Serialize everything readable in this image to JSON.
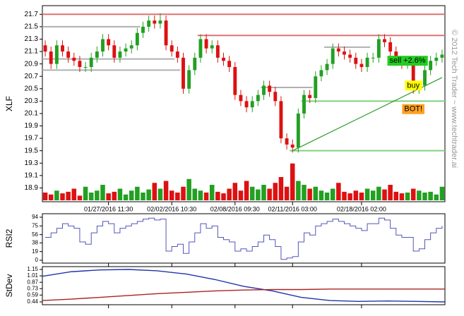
{
  "chart_data": [
    {
      "type": "candlestick",
      "y_label": "XLF",
      "watermark": "© 2012 Tech Trader ~ www.techtrader.ai",
      "categories": [
        null,
        null,
        null,
        null,
        null,
        null,
        null,
        null,
        null,
        null,
        null,
        "01/27/2016 11:30",
        null,
        null,
        null,
        null,
        null,
        null,
        null,
        null,
        null,
        null,
        "02/02/2016 10:30",
        null,
        null,
        null,
        null,
        null,
        null,
        null,
        null,
        null,
        null,
        "02/08/2016 09:30",
        null,
        null,
        null,
        null,
        null,
        null,
        null,
        null,
        null,
        "02/11/2016 03:00",
        null,
        null,
        null,
        null,
        null,
        null,
        null,
        null,
        null,
        null,
        null,
        "02/18/2016 02:00",
        null,
        null,
        null,
        null,
        null,
        null,
        null,
        null,
        null,
        null,
        null,
        null,
        null,
        null
      ],
      "open": [
        21.2,
        21.1,
        20.9,
        21.2,
        21.1,
        21.0,
        20.95,
        20.85,
        20.85,
        21.0,
        21.1,
        21.3,
        21.2,
        21.0,
        21.1,
        21.15,
        21.2,
        21.4,
        21.5,
        21.6,
        21.55,
        21.6,
        21.2,
        21.1,
        21.0,
        20.5,
        20.8,
        21.0,
        21.3,
        21.15,
        21.2,
        21.0,
        20.95,
        20.85,
        20.4,
        20.3,
        20.2,
        20.3,
        20.4,
        20.55,
        20.45,
        20.3,
        19.7,
        19.6,
        19.55,
        20.1,
        20.4,
        20.35,
        20.7,
        20.8,
        20.9,
        21.15,
        21.1,
        21.05,
        21.0,
        20.9,
        20.85,
        21.0,
        21.0,
        21.3,
        21.25,
        21.1,
        20.95,
        20.9,
        20.9,
        20.5,
        20.55,
        20.8,
        20.95,
        21.0
      ],
      "high": [
        21.28,
        21.18,
        21.28,
        21.28,
        21.18,
        21.08,
        21.03,
        20.93,
        21.08,
        21.18,
        21.38,
        21.38,
        21.28,
        21.18,
        21.23,
        21.28,
        21.48,
        21.58,
        21.68,
        21.68,
        21.72,
        21.68,
        21.28,
        21.18,
        21.08,
        20.88,
        21.08,
        21.38,
        21.38,
        21.28,
        21.28,
        21.08,
        21.03,
        20.93,
        20.48,
        20.38,
        20.38,
        20.48,
        20.63,
        20.63,
        20.53,
        20.38,
        19.78,
        19.68,
        20.18,
        20.48,
        20.48,
        20.78,
        20.88,
        20.98,
        21.23,
        21.23,
        21.18,
        21.13,
        21.08,
        20.98,
        21.08,
        21.08,
        21.38,
        21.38,
        21.33,
        21.18,
        21.03,
        20.98,
        20.98,
        20.63,
        20.88,
        21.03,
        21.08,
        21.13
      ],
      "low": [
        21.02,
        20.82,
        20.82,
        21.02,
        20.92,
        20.87,
        20.77,
        20.77,
        20.77,
        20.92,
        21.02,
        21.12,
        20.92,
        20.92,
        21.02,
        21.07,
        21.12,
        21.32,
        21.42,
        21.47,
        21.47,
        21.12,
        21.02,
        20.92,
        20.42,
        20.42,
        20.72,
        20.92,
        21.07,
        21.07,
        20.92,
        20.87,
        20.77,
        20.32,
        20.22,
        20.12,
        20.12,
        20.22,
        20.32,
        20.37,
        20.22,
        19.62,
        19.52,
        19.47,
        19.47,
        20.02,
        20.27,
        20.27,
        20.62,
        20.72,
        20.82,
        21.02,
        20.97,
        20.92,
        20.82,
        20.77,
        20.77,
        20.92,
        20.92,
        21.17,
        21.02,
        20.87,
        20.82,
        20.82,
        20.42,
        20.42,
        20.47,
        20.72,
        20.87,
        20.92
      ],
      "close": [
        21.1,
        20.9,
        21.2,
        21.1,
        21.0,
        20.95,
        20.85,
        20.85,
        21.0,
        21.1,
        21.3,
        21.2,
        21.0,
        21.1,
        21.15,
        21.2,
        21.4,
        21.5,
        21.6,
        21.55,
        21.6,
        21.2,
        21.1,
        21.0,
        20.5,
        20.8,
        21.0,
        21.3,
        21.15,
        21.2,
        21.0,
        20.95,
        20.85,
        20.4,
        20.3,
        20.2,
        20.3,
        20.4,
        20.55,
        20.45,
        20.3,
        19.7,
        19.6,
        19.55,
        20.1,
        20.4,
        20.35,
        20.7,
        20.8,
        20.9,
        21.15,
        21.1,
        21.05,
        21.0,
        20.9,
        20.85,
        21.0,
        21.0,
        21.3,
        21.25,
        21.1,
        20.95,
        20.9,
        20.9,
        20.5,
        20.55,
        20.8,
        20.95,
        21.0,
        21.05
      ],
      "volume": [
        20,
        15,
        25,
        18,
        22,
        30,
        12,
        35,
        20,
        25,
        40,
        18,
        22,
        30,
        15,
        25,
        35,
        20,
        28,
        45,
        30,
        50,
        25,
        20,
        35,
        55,
        30,
        25,
        20,
        40,
        22,
        18,
        30,
        45,
        25,
        50,
        35,
        28,
        40,
        30,
        45,
        60,
        35,
        95,
        50,
        40,
        30,
        35,
        25,
        20,
        30,
        45,
        22,
        18,
        25,
        20,
        30,
        25,
        35,
        28,
        40,
        22,
        18,
        20,
        30,
        25,
        20,
        22,
        15,
        35
      ],
      "vlim": [
        0,
        100
      ],
      "up_color": "#22a022",
      "down_color": "#dd1111",
      "ylim": [
        18.7,
        21.84
      ],
      "yticks": [
        21.7,
        21.5,
        21.3,
        21.1,
        20.9,
        20.7,
        20.5,
        20.3,
        20.1,
        19.9,
        19.7,
        19.5,
        19.3,
        19.1,
        18.9
      ],
      "levels": [
        {
          "value": 21.7,
          "start": 0,
          "end": 69,
          "color": "#e07070"
        },
        {
          "value": 21.36,
          "start": 27,
          "end": 69,
          "color": "#e07070"
        },
        {
          "value": 21.5,
          "start": 0,
          "end": 16,
          "color": "#b0b0b0"
        },
        {
          "value": 20.98,
          "start": 0,
          "end": 22,
          "color": "#b0b0b0"
        },
        {
          "value": 20.8,
          "start": 0,
          "end": 23,
          "color": "#b0b0b0"
        },
        {
          "value": 20.52,
          "start": 38,
          "end": 46,
          "color": "#b0b0b0"
        },
        {
          "value": 21.17,
          "start": 49,
          "end": 56,
          "color": "#b0b0b0"
        },
        {
          "value": 20.3,
          "start": 45,
          "end": 69,
          "color": "#80d080"
        },
        {
          "value": 19.5,
          "start": 43,
          "end": 69,
          "color": "#80d080"
        }
      ],
      "trendline": {
        "x": [
          43,
          69
        ],
        "y": [
          19.5,
          20.68
        ],
        "color": "#2a9a2a"
      },
      "annotations": [
        {
          "text": "sell +2.6%",
          "index": 63,
          "value": 20.95,
          "color": "#22cc22"
        },
        {
          "text": "buy",
          "index": 64,
          "value": 20.55,
          "color": "#ffff00"
        },
        {
          "text": "BOT!",
          "index": 64,
          "value": 20.17,
          "color": "#ffa020"
        }
      ]
    },
    {
      "type": "line",
      "y_label": "RSI2",
      "ylim": [
        0,
        94
      ],
      "yticks": [
        94,
        75,
        56,
        38,
        19,
        0
      ],
      "series": [
        {
          "color": "#5555bb",
          "values": [
            50,
            60,
            70,
            80,
            75,
            70,
            40,
            35,
            60,
            75,
            85,
            80,
            60,
            70,
            75,
            80,
            85,
            90,
            92,
            88,
            90,
            20,
            30,
            35,
            15,
            40,
            60,
            80,
            70,
            75,
            50,
            45,
            40,
            20,
            25,
            20,
            30,
            40,
            55,
            45,
            30,
            2,
            5,
            8,
            40,
            60,
            55,
            75,
            80,
            85,
            90,
            85,
            80,
            75,
            70,
            65,
            80,
            80,
            92,
            88,
            70,
            55,
            50,
            50,
            20,
            25,
            45,
            60,
            70,
            75
          ]
        }
      ]
    },
    {
      "type": "line",
      "y_label": "StDev",
      "ylim": [
        0.44,
        1.15
      ],
      "yticks": [
        1.15,
        1.01,
        0.87,
        0.73,
        0.59,
        0.44
      ],
      "series": [
        {
          "color": "#2233aa",
          "values": [
            1.0,
            1.1,
            1.14,
            1.15,
            1.12,
            1.05,
            0.93,
            0.78,
            0.68,
            0.54,
            0.47,
            0.45,
            0.46,
            0.45,
            0.44
          ]
        },
        {
          "color": "#aa2222",
          "values": [
            0.47,
            0.5,
            0.54,
            0.58,
            0.62,
            0.65,
            0.68,
            0.7,
            0.71,
            0.71,
            0.72,
            0.72,
            0.72,
            0.72,
            0.72
          ]
        }
      ]
    }
  ]
}
